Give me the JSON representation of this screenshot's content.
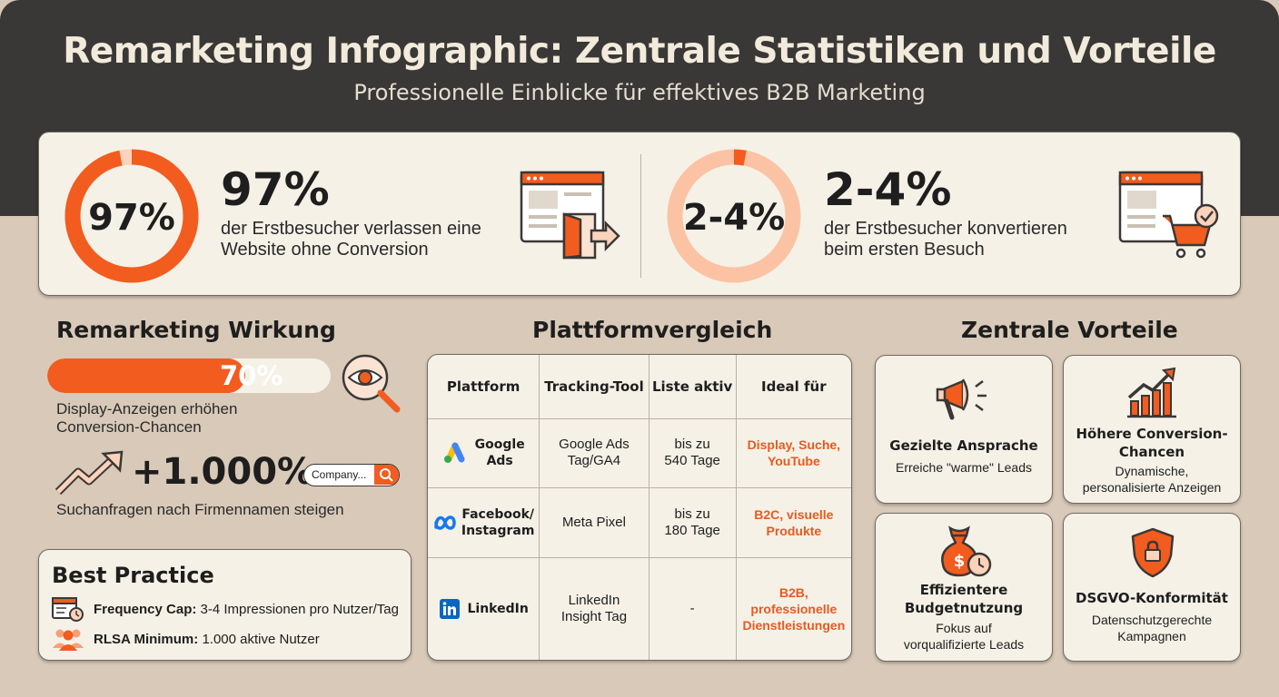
{
  "header": {
    "title": "Remarketing Infographic: Zentrale Statistiken und Vorteile",
    "subtitle": "Professionelle Einblicke für effektives B2B Marketing"
  },
  "stats": [
    {
      "ring_label": "97%",
      "value": "97%",
      "fraction": 0.97,
      "desc_line1": "der Erstbesucher verlassen eine",
      "desc_line2": "Website ohne Conversion",
      "icon": "browser-exit-icon"
    },
    {
      "ring_label": "2-4%",
      "value": "2-4%",
      "fraction": 0.03,
      "desc_line1": "der Erstbesucher konvertieren",
      "desc_line2": "beim ersten Besuch",
      "icon": "browser-cart-icon"
    }
  ],
  "wirkung": {
    "title": "Remarketing Wirkung",
    "progress_label": "70%",
    "progress_value": 0.7,
    "progress_desc_line1": "Display-Anzeigen erhöhen",
    "progress_desc_line2": "Conversion-Chancen",
    "growth_value": "+1.000%",
    "search_placeholder": "Company...",
    "growth_desc": "Suchanfragen nach Firmennamen steigen"
  },
  "best_practice": {
    "title": "Best Practice",
    "items": [
      {
        "label": "Frequency Cap:",
        "text": "3-4 Impressionen pro Nutzer/Tag",
        "icon": "calendar-clock-icon"
      },
      {
        "label": "RLSA Minimum:",
        "text": "1.000 aktive Nutzer",
        "icon": "users-icon"
      }
    ]
  },
  "platform": {
    "title": "Plattformvergleich",
    "headers": [
      "Plattform",
      "Tracking-Tool",
      "Liste aktiv",
      "Ideal für"
    ],
    "rows": [
      {
        "name_line1": "Google",
        "name_line2": "Ads",
        "tool_line1": "Google Ads",
        "tool_line2": "Tag/GA4",
        "list_line1": "bis zu",
        "list_line2": "540 Tage",
        "ideal_line1": "Display, Suche,",
        "ideal_line2": "YouTube",
        "ideal_line3": "",
        "icon": "google-ads-icon"
      },
      {
        "name_line1": "Facebook/",
        "name_line2": "Instagram",
        "tool_line1": "Meta Pixel",
        "tool_line2": "",
        "list_line1": "bis zu",
        "list_line2": "180 Tage",
        "ideal_line1": "B2C, visuelle",
        "ideal_line2": "Produkte",
        "ideal_line3": "",
        "icon": "meta-icon"
      },
      {
        "name_line1": "LinkedIn",
        "name_line2": "",
        "tool_line1": "LinkedIn",
        "tool_line2": "Insight Tag",
        "list_line1": "-",
        "list_line2": "",
        "ideal_line1": "B2B,",
        "ideal_line2": "professionelle",
        "ideal_line3": "Dienstleistungen",
        "icon": "linkedin-icon"
      }
    ]
  },
  "benefits": {
    "title": "Zentrale Vorteile",
    "cards": [
      {
        "title": "Gezielte Ansprache",
        "desc": "Erreiche \"warme\" Leads",
        "icon": "megaphone-icon"
      },
      {
        "title": "Höhere Conversion-\nChancen",
        "desc": "Dynamische,\npersonalisierte Anzeigen",
        "icon": "growth-chart-icon"
      },
      {
        "title": "Effizientere\nBudgetnutzung",
        "desc": "Fokus auf\nvorqualifizierte Leads",
        "icon": "money-bag-clock-icon"
      },
      {
        "title": "DSGVO-Konformität",
        "desc": "Datenschutzgerechte\nKampagnen",
        "icon": "shield-lock-icon"
      }
    ]
  },
  "colors": {
    "accent": "#f25c1f",
    "accent_light": "#fbc3a3",
    "dark": "#3a3836",
    "panel": "#f5f1e7",
    "background": "#d8c9b8"
  }
}
